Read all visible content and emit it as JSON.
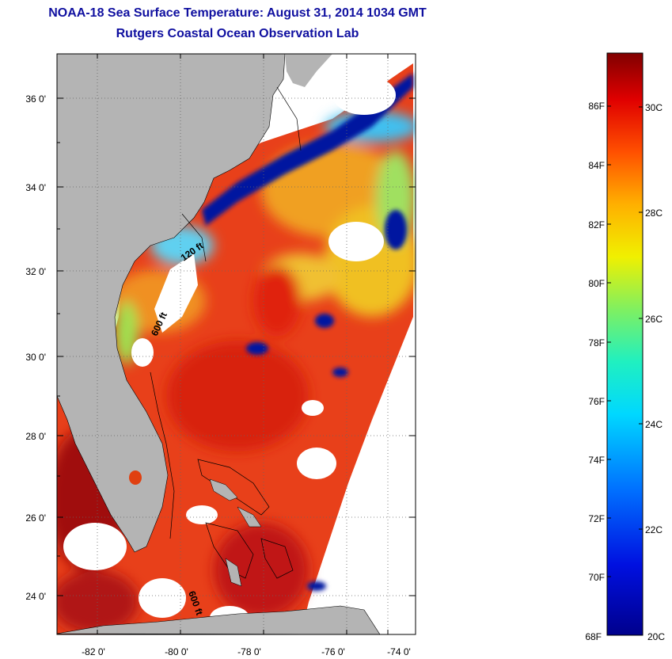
{
  "header": {
    "title_line1": "NOAA-18 Sea Surface Temperature:  August 31, 2014 1034 GMT",
    "title_line2": "Rutgers Coastal Ocean Observation Lab"
  },
  "map": {
    "lat_labels": [
      "36 0'",
      "34 0'",
      "32 0'",
      "30 0'",
      "28 0'",
      "26 0'",
      "24 0'"
    ],
    "lon_labels": [
      "-82 0'",
      "-80 0'",
      "-78 0'",
      "-76 0'",
      "-74 0'"
    ],
    "contour_labels": [
      "120 ft",
      "600 ft",
      "600 ft"
    ],
    "colors": {
      "land": "#b4b4b4",
      "cloud": "#ffffff",
      "warm": "#e03010",
      "cold": "#0018a0"
    }
  },
  "colorbar": {
    "f_labels": [
      "86F",
      "84F",
      "82F",
      "80F",
      "78F",
      "76F",
      "74F",
      "72F",
      "70F",
      "68F"
    ],
    "c_labels": [
      "30C",
      "28C",
      "26C",
      "24C",
      "22C",
      "20C"
    ]
  }
}
